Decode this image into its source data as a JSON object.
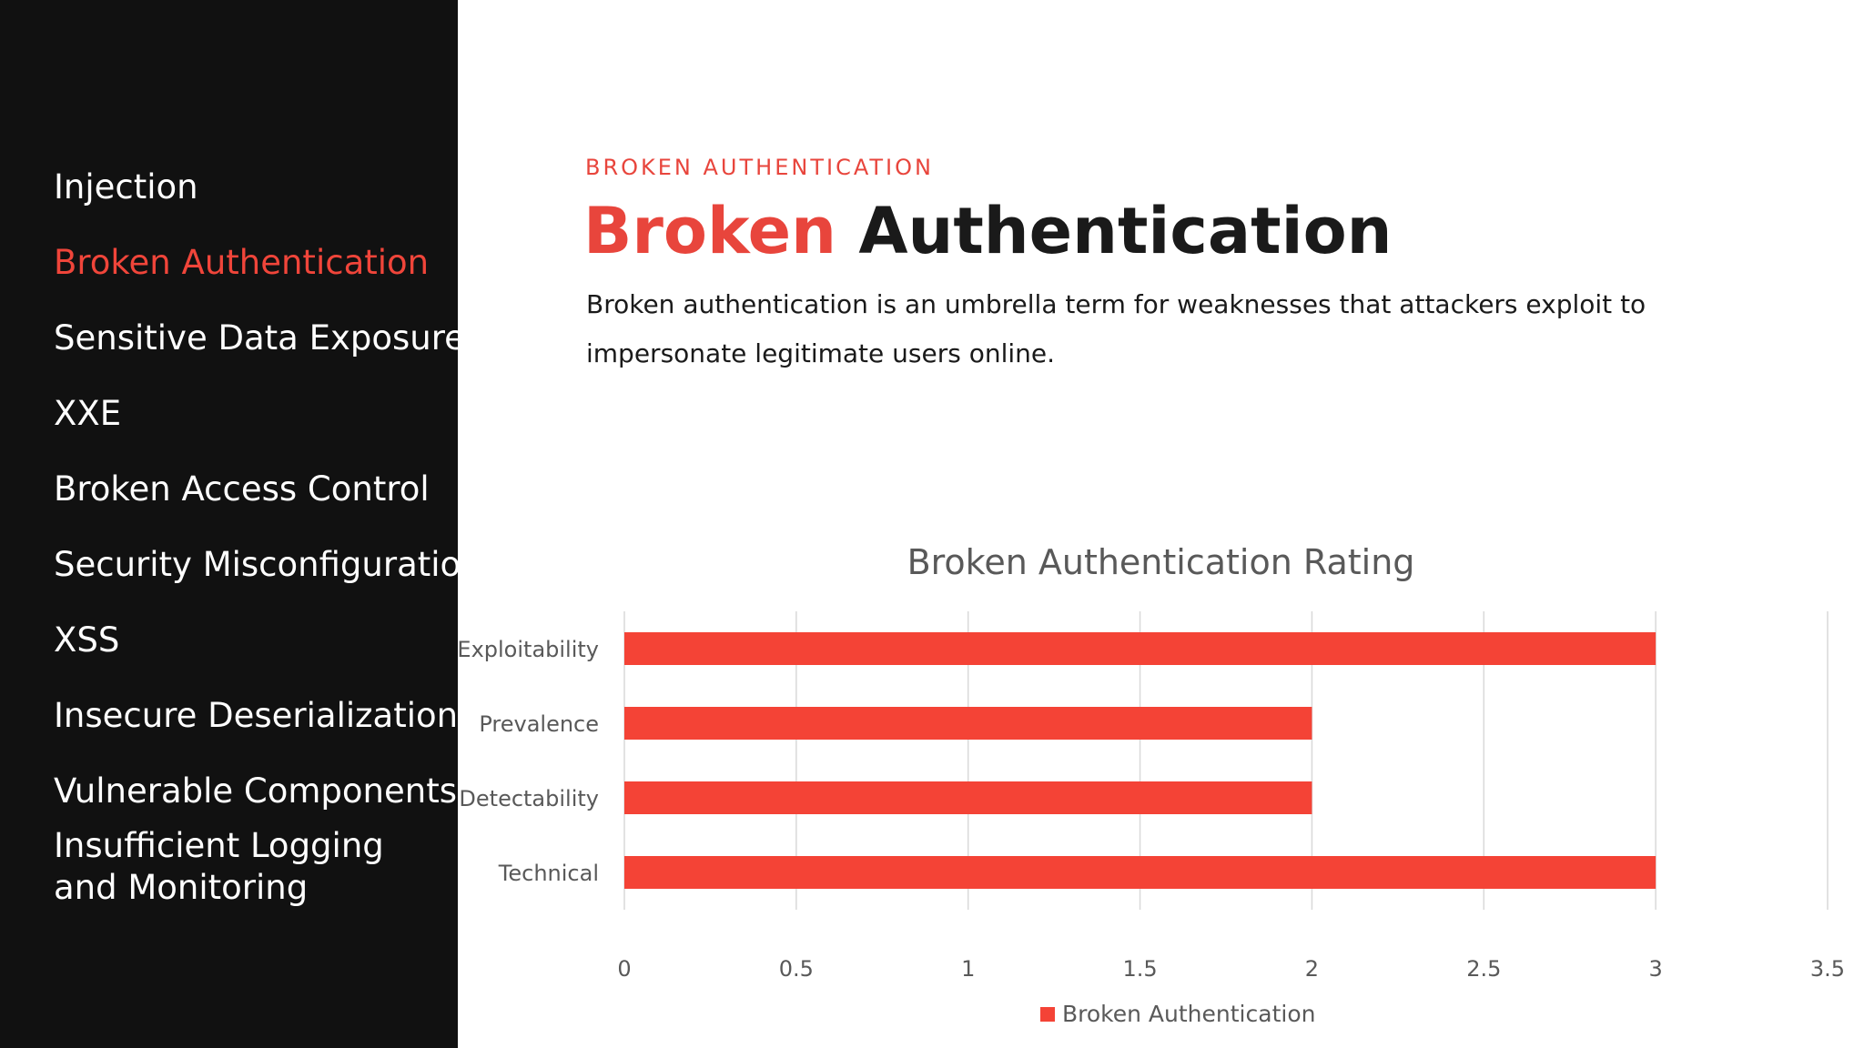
{
  "sidebar": {
    "items": [
      {
        "label": "Injection",
        "active": false
      },
      {
        "label": "Broken Authentication",
        "active": true
      },
      {
        "label": "Sensitive Data Exposure",
        "active": false
      },
      {
        "label": "XXE",
        "active": false
      },
      {
        "label": "Broken Access Control",
        "active": false
      },
      {
        "label": "Security Misconfiguration",
        "active": false
      },
      {
        "label": "XSS",
        "active": false
      },
      {
        "label": "Insecure Deserialization",
        "active": false
      },
      {
        "label": "Vulnerable Components",
        "active": false
      },
      {
        "label": "Insufficient Logging and Monitoring",
        "active": false
      }
    ]
  },
  "main": {
    "eyebrow": "BROKEN AUTHENTICATION",
    "headline_accent": "Broken",
    "headline_rest": "Authentication",
    "description": "Broken authentication is an umbrella term for weaknesses that attackers exploit to impersonate legitimate users online."
  },
  "colors": {
    "accent": "#f44336",
    "sidebar_bg": "#111111",
    "grid": "#d9d9d9",
    "axis_text": "#595959"
  },
  "chart_data": {
    "type": "bar",
    "orientation": "horizontal",
    "title": "Broken Authentication Rating",
    "categories": [
      "Exploitability",
      "Prevalence",
      "Detectability",
      "Technical"
    ],
    "series": [
      {
        "name": "Broken Authentication",
        "values": [
          3,
          2,
          2,
          3
        ],
        "color": "#f44336"
      }
    ],
    "xlim": [
      0,
      3.5
    ],
    "xticks": [
      "0",
      "0.5",
      "1",
      "1.5",
      "2",
      "2.5",
      "3",
      "3.5"
    ],
    "grid": true,
    "legend": "bottom"
  }
}
